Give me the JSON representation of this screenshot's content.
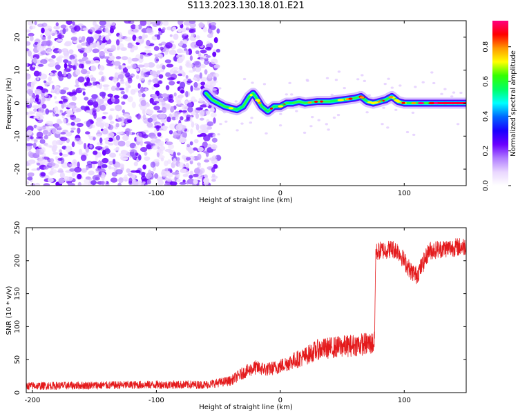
{
  "figure_title": "S113.2023.130.18.01.E21",
  "chart_data": [
    {
      "type": "heatmap",
      "xlabel": "Height of straight line (km)",
      "ylabel": "Frequency (Hz)",
      "xlim": [
        -205,
        150
      ],
      "ylim": [
        -25,
        25
      ],
      "xticks": [
        "-200",
        "-100",
        "0",
        "100"
      ],
      "yticks": [
        "20",
        "10",
        "0",
        "-10",
        "-20"
      ],
      "colorbar": {
        "label": "Normalized spectral amplitude",
        "range": [
          0,
          0.95
        ],
        "ticks": [
          "0.0",
          "0.2",
          "0.4",
          "0.6",
          "0.8"
        ],
        "colormap": [
          "#ffffff",
          "#e9d6ff",
          "#b07cff",
          "#6a00ff",
          "#1a00ff",
          "#0066ff",
          "#00ffff",
          "#00ff66",
          "#33ff00",
          "#ffff00",
          "#ff9900",
          "#ff0000",
          "#ff0080"
        ]
      },
      "noise_region_x": [
        -205,
        -50
      ],
      "ridge": {
        "x": [
          -60,
          -55,
          -50,
          -45,
          -40,
          -35,
          -30,
          -25,
          -22,
          -20,
          -15,
          -10,
          -5,
          0,
          5,
          10,
          15,
          20,
          30,
          40,
          50,
          60,
          65,
          70,
          75,
          80,
          85,
          90,
          95,
          100,
          110,
          120,
          130,
          140,
          150
        ],
        "y": [
          3,
          1,
          0,
          -1,
          -1.5,
          -2,
          -1,
          2,
          3,
          2,
          -1,
          -2.5,
          -1,
          -1,
          0,
          0,
          0.5,
          0,
          0.5,
          0.5,
          1,
          1.5,
          2,
          0.5,
          0,
          0.5,
          1,
          2,
          0.5,
          0,
          0,
          0,
          0,
          0,
          0
        ]
      }
    },
    {
      "type": "line",
      "xlabel": "Height of straight line (km)",
      "ylabel": "SNR (10 * v/v)",
      "xlim": [
        -205,
        150
      ],
      "ylim": [
        0,
        250
      ],
      "xticks": [
        "-200",
        "-100",
        "0",
        "100"
      ],
      "yticks": [
        "250",
        "200",
        "150",
        "100",
        "50",
        "0"
      ],
      "color": "#e41a1c",
      "series": [
        {
          "x": [
            -205,
            -150,
            -100,
            -60,
            -40,
            -30,
            -20,
            -10,
            0,
            10,
            20,
            30,
            40,
            50,
            60,
            70,
            76,
            77,
            80,
            90,
            95,
            100,
            105,
            110,
            115,
            120,
            130,
            140,
            150
          ],
          "values": [
            10,
            11,
            12,
            12,
            18,
            30,
            38,
            35,
            40,
            48,
            55,
            65,
            68,
            70,
            72,
            74,
            75,
            212,
            215,
            218,
            215,
            200,
            185,
            178,
            195,
            215,
            218,
            220,
            222
          ]
        }
      ]
    }
  ]
}
